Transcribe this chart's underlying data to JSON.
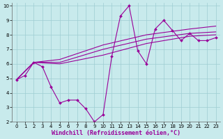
{
  "xlabel": "Windchill (Refroidissement éolien,°C)",
  "background_color": "#c8eaec",
  "grid_color": "#9ecdd2",
  "line_color": "#990099",
  "xlim": [
    -0.5,
    23.5
  ],
  "ylim": [
    2,
    10.2
  ],
  "xticks": [
    0,
    1,
    2,
    3,
    4,
    5,
    6,
    7,
    8,
    9,
    10,
    11,
    12,
    13,
    14,
    15,
    16,
    17,
    18,
    19,
    20,
    21,
    22,
    23
  ],
  "yticks": [
    2,
    3,
    4,
    5,
    6,
    7,
    8,
    9,
    10
  ],
  "lines": [
    {
      "x": [
        0,
        1,
        2,
        3,
        4,
        5,
        6,
        7,
        8,
        9,
        10,
        11,
        12,
        13,
        14,
        15,
        16,
        17,
        18,
        19,
        20,
        21,
        22,
        23
      ],
      "y": [
        4.9,
        5.2,
        6.1,
        5.8,
        4.4,
        3.3,
        3.5,
        3.5,
        2.9,
        2.0,
        2.5,
        6.5,
        9.3,
        10.0,
        6.9,
        6.0,
        8.4,
        9.0,
        8.3,
        7.6,
        8.1,
        7.6,
        7.6,
        7.8
      ],
      "has_markers": true
    },
    {
      "x": [
        0,
        2,
        5,
        10,
        15,
        20,
        23
      ],
      "y": [
        4.9,
        6.1,
        6.0,
        6.6,
        7.4,
        7.9,
        8.0
      ],
      "has_markers": false
    },
    {
      "x": [
        0,
        2,
        5,
        10,
        15,
        20,
        23
      ],
      "y": [
        4.9,
        6.1,
        6.1,
        7.0,
        7.7,
        8.1,
        8.2
      ],
      "has_markers": false
    },
    {
      "x": [
        0,
        2,
        5,
        10,
        15,
        20,
        23
      ],
      "y": [
        4.9,
        6.1,
        6.3,
        7.3,
        8.0,
        8.4,
        8.6
      ],
      "has_markers": false
    }
  ],
  "markersize": 2.0,
  "linewidth": 0.8,
  "tick_fontsize": 5,
  "xlabel_fontsize": 6
}
